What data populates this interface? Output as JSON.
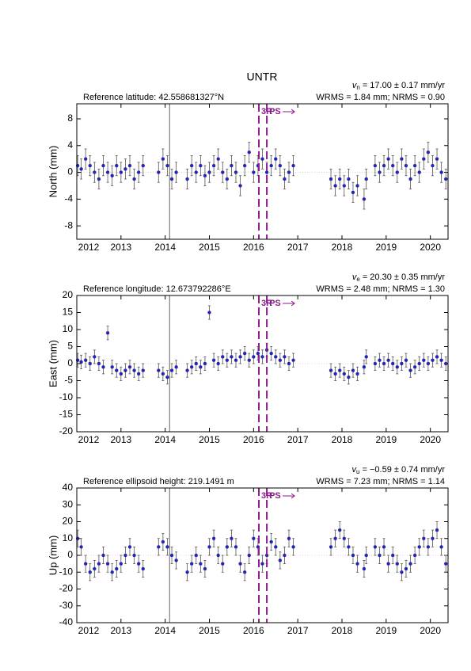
{
  "chart_data": [
    {
      "type": "scatter",
      "title": "UNTR",
      "reference": "Reference latitude: 42.558681327°N",
      "velocity": {
        "symbol": "v",
        "subscript": "n",
        "text": " = 17.00 ± 0.17 mm/yr"
      },
      "stats": "WRMS = 1.84 mm; NRMS = 0.90",
      "ylabel": "North (mm)",
      "xlim": [
        2012,
        2020.4
      ],
      "xticks": [
        2012,
        2013,
        2014,
        2015,
        2016,
        2017,
        2018,
        2019,
        2020
      ],
      "ylim": [
        -10,
        10.25
      ],
      "yticks": [
        -8,
        -4,
        0,
        4,
        8
      ],
      "color": "#1f1fe0",
      "error_color": "#555555",
      "zero_line": true,
      "vline": 2014.1,
      "events": [
        {
          "x": 2016.12,
          "label": "3R"
        },
        {
          "x": 2016.3,
          "label": "PS"
        }
      ],
      "event_color": "#8b1a8b",
      "x": [
        2012.02,
        2012.1,
        2012.2,
        2012.3,
        2012.4,
        2012.5,
        2012.6,
        2012.7,
        2012.8,
        2012.9,
        2013.0,
        2013.1,
        2013.2,
        2013.3,
        2013.4,
        2013.5,
        2013.85,
        2013.95,
        2014.05,
        2014.15,
        2014.25,
        2014.5,
        2014.6,
        2014.7,
        2014.8,
        2014.9,
        2015.0,
        2015.1,
        2015.2,
        2015.3,
        2015.4,
        2015.5,
        2015.6,
        2015.7,
        2015.8,
        2015.9,
        2016.0,
        2016.1,
        2016.2,
        2016.3,
        2016.4,
        2016.5,
        2016.6,
        2016.7,
        2016.8,
        2016.9,
        2017.75,
        2017.85,
        2017.95,
        2018.05,
        2018.15,
        2018.25,
        2018.35,
        2018.5,
        2018.55,
        2018.75,
        2018.85,
        2018.95,
        2019.05,
        2019.15,
        2019.25,
        2019.35,
        2019.45,
        2019.55,
        2019.65,
        2019.75,
        2019.85,
        2019.95,
        2020.05,
        2020.15,
        2020.25,
        2020.35
      ],
      "values": [
        1,
        0.5,
        2,
        1,
        0,
        -1,
        1,
        0,
        -0.5,
        1,
        0,
        0.5,
        1,
        -1,
        0,
        1,
        0,
        2,
        1,
        -1,
        0,
        -1,
        1,
        0,
        1,
        -0.5,
        0,
        1,
        2,
        0,
        -1,
        1,
        0,
        -2,
        1,
        3,
        0,
        1,
        2,
        0,
        1,
        2,
        1,
        -1,
        0,
        1,
        -1,
        -2,
        -1,
        -2,
        -1,
        -3,
        -2,
        -4,
        -1,
        1,
        0,
        1,
        2,
        1,
        0,
        2,
        1,
        -1,
        1,
        0,
        2,
        3,
        1,
        2,
        0,
        -1
      ],
      "error": 1.5
    },
    {
      "type": "scatter",
      "reference": "Reference longitude: 12.673792286°E",
      "velocity": {
        "symbol": "v",
        "subscript": "e",
        "text": " = 20.30 ± 0.35 mm/yr"
      },
      "stats": "WRMS = 2.48 mm; NRMS = 1.30",
      "ylabel": "East (mm)",
      "xlim": [
        2012,
        2020.4
      ],
      "xticks": [
        2012,
        2013,
        2014,
        2015,
        2016,
        2017,
        2018,
        2019,
        2020
      ],
      "ylim": [
        -20,
        20
      ],
      "yticks": [
        -20,
        -15,
        -10,
        -5,
        0,
        5,
        10,
        15,
        20
      ],
      "color": "#1f1fe0",
      "error_color": "#555555",
      "zero_line": true,
      "vline": 2014.1,
      "events": [
        {
          "x": 2016.12,
          "label": "3R"
        },
        {
          "x": 2016.3,
          "label": "PS"
        }
      ],
      "event_color": "#8b1a8b",
      "x": [
        2012.02,
        2012.1,
        2012.2,
        2012.3,
        2012.4,
        2012.5,
        2012.6,
        2012.7,
        2012.8,
        2012.9,
        2013.0,
        2013.1,
        2013.2,
        2013.3,
        2013.4,
        2013.5,
        2013.85,
        2013.95,
        2014.05,
        2014.15,
        2014.25,
        2014.5,
        2014.6,
        2014.7,
        2014.8,
        2014.9,
        2015.0,
        2015.1,
        2015.2,
        2015.3,
        2015.4,
        2015.5,
        2015.6,
        2015.7,
        2015.8,
        2015.9,
        2016.0,
        2016.1,
        2016.2,
        2016.3,
        2016.4,
        2016.5,
        2016.6,
        2016.7,
        2016.8,
        2016.9,
        2017.75,
        2017.85,
        2017.95,
        2018.05,
        2018.15,
        2018.25,
        2018.35,
        2018.5,
        2018.55,
        2018.75,
        2018.85,
        2018.95,
        2019.05,
        2019.15,
        2019.25,
        2019.35,
        2019.45,
        2019.55,
        2019.65,
        2019.75,
        2019.85,
        2019.95,
        2020.05,
        2020.15,
        2020.25,
        2020.35
      ],
      "values": [
        1,
        0.5,
        1,
        0,
        2,
        0,
        -1,
        9,
        -1,
        -2,
        -3,
        -2,
        -1,
        -2,
        -3,
        -2,
        -2,
        -3,
        -4,
        -2,
        -1,
        -2,
        -1,
        0,
        -1,
        0,
        15,
        1,
        0,
        2,
        1,
        2,
        1,
        2,
        3,
        1,
        2,
        3,
        2,
        4,
        3,
        2,
        1,
        2,
        0,
        1,
        -2,
        -3,
        -2,
        -3,
        -4,
        -2,
        -3,
        -1,
        2,
        0,
        1,
        0,
        1,
        0,
        -1,
        0,
        1,
        -2,
        -1,
        0,
        1,
        0,
        1,
        2,
        1,
        0
      ],
      "error": 2
    },
    {
      "type": "scatter",
      "reference": "Reference ellipsoid height: 219.1491 m",
      "velocity": {
        "symbol": "v",
        "subscript": "u",
        "text": " = −0.59 ± 0.74 mm/yr"
      },
      "stats": "WRMS = 7.23 mm; NRMS = 1.14",
      "ylabel": "Up (mm)",
      "xlim": [
        2012,
        2020.4
      ],
      "xticks": [
        2012,
        2013,
        2014,
        2015,
        2016,
        2017,
        2018,
        2019,
        2020
      ],
      "ylim": [
        -40,
        40
      ],
      "yticks": [
        -40,
        -30,
        -20,
        -10,
        0,
        10,
        20,
        30,
        40
      ],
      "color": "#1f1fe0",
      "error_color": "#555555",
      "zero_line": true,
      "vline": 2014.1,
      "events": [
        {
          "x": 2016.12,
          "label": "3R"
        },
        {
          "x": 2016.3,
          "label": "PS"
        }
      ],
      "event_color": "#8b1a8b",
      "x": [
        2012.02,
        2012.1,
        2012.2,
        2012.3,
        2012.4,
        2012.5,
        2012.6,
        2012.7,
        2012.8,
        2012.9,
        2013.0,
        2013.1,
        2013.2,
        2013.3,
        2013.4,
        2013.5,
        2013.85,
        2013.95,
        2014.05,
        2014.15,
        2014.25,
        2014.5,
        2014.6,
        2014.7,
        2014.8,
        2014.9,
        2015.0,
        2015.1,
        2015.2,
        2015.3,
        2015.4,
        2015.5,
        2015.6,
        2015.7,
        2015.8,
        2015.9,
        2016.0,
        2016.1,
        2016.2,
        2016.3,
        2016.4,
        2016.5,
        2016.6,
        2016.7,
        2016.8,
        2016.9,
        2017.75,
        2017.85,
        2017.95,
        2018.05,
        2018.15,
        2018.25,
        2018.35,
        2018.5,
        2018.55,
        2018.75,
        2018.85,
        2018.95,
        2019.05,
        2019.15,
        2019.25,
        2019.35,
        2019.45,
        2019.55,
        2019.65,
        2019.75,
        2019.85,
        2019.95,
        2020.05,
        2020.15,
        2020.25,
        2020.35
      ],
      "values": [
        10,
        5,
        -5,
        -10,
        -8,
        -5,
        0,
        -5,
        -10,
        -8,
        -5,
        0,
        5,
        0,
        -5,
        -8,
        5,
        8,
        5,
        0,
        -3,
        -10,
        -5,
        0,
        -5,
        -8,
        5,
        10,
        0,
        -5,
        5,
        10,
        5,
        -5,
        -10,
        0,
        10,
        5,
        -5,
        0,
        8,
        5,
        -3,
        0,
        10,
        5,
        5,
        10,
        15,
        10,
        5,
        0,
        -5,
        -8,
        0,
        5,
        0,
        5,
        -5,
        0,
        -5,
        -10,
        -8,
        -5,
        0,
        5,
        10,
        5,
        10,
        15,
        5,
        -5
      ],
      "error": 5
    }
  ]
}
